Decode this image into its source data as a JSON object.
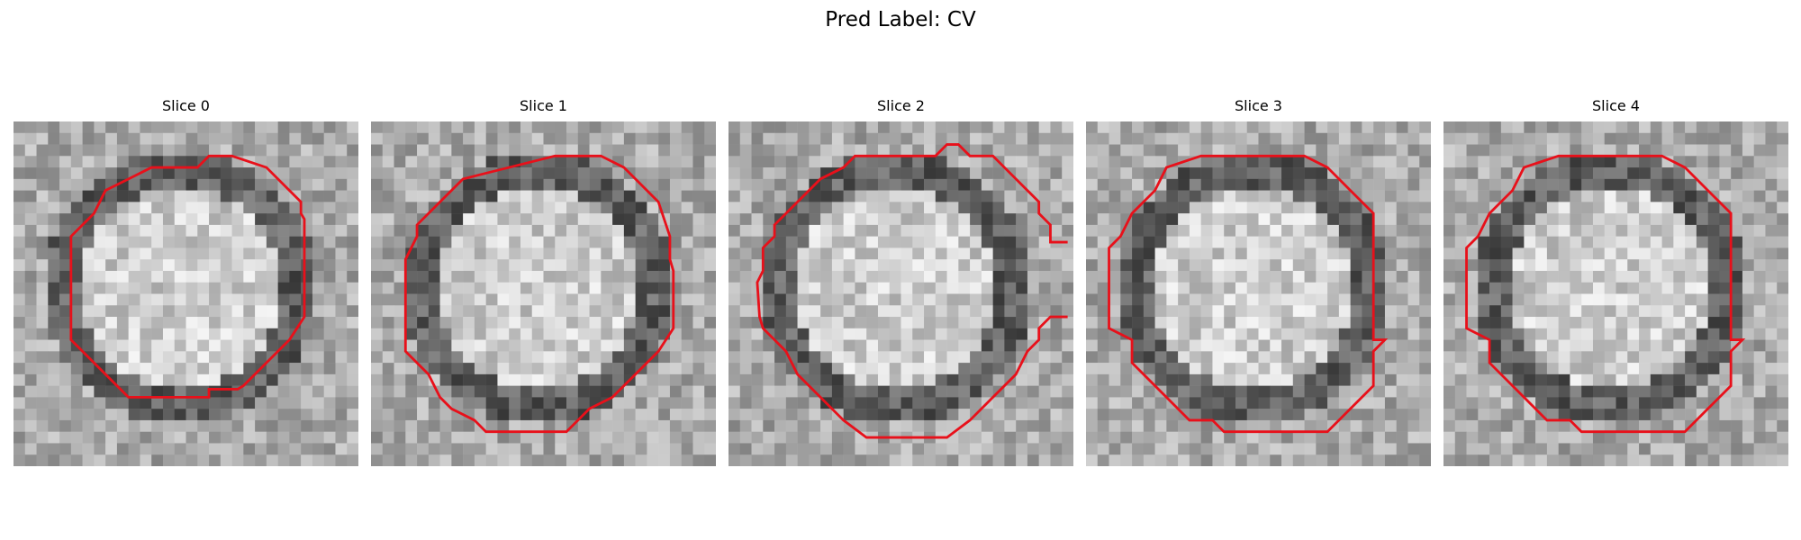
{
  "figure": {
    "title": "Pred Label: CV"
  },
  "panels": [
    {
      "title": "Slice 0",
      "seed": 11,
      "contour_color": "#e8101a"
    },
    {
      "title": "Slice 1",
      "seed": 23,
      "contour_color": "#e8101a"
    },
    {
      "title": "Slice 2",
      "seed": 37,
      "contour_color": "#e8101a"
    },
    {
      "title": "Slice 3",
      "seed": 41,
      "contour_color": "#e8101a"
    },
    {
      "title": "Slice 4",
      "seed": 43,
      "contour_color": "#e8101a"
    }
  ]
}
